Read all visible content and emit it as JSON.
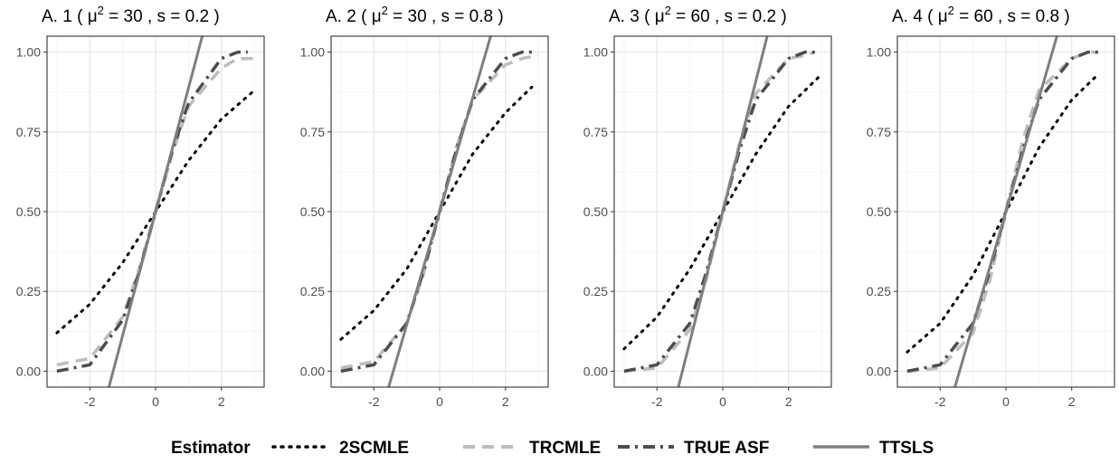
{
  "chart_data": {
    "type": "line",
    "x_ticks": [
      -2,
      0,
      2
    ],
    "y_ticks": [
      0,
      0.25,
      0.5,
      0.75,
      1
    ],
    "y_tick_labels": [
      "0.00",
      "0.25",
      "0.50",
      "0.75",
      "1.00"
    ],
    "x_tick_labels": [
      "-2",
      "0",
      "2"
    ],
    "xlim": [
      -3.3,
      3.3
    ],
    "ylim": [
      -0.05,
      1.05
    ],
    "grid": true,
    "legend": {
      "title": "Estimator",
      "placement": "bottom",
      "entries": [
        {
          "name": "2SCMLE",
          "color": "#000000",
          "style": "dotted"
        },
        {
          "name": "TRCMLE",
          "color": "#bdbdbd",
          "style": "dashed"
        },
        {
          "name": "TRUE ASF",
          "color": "#4d4d4d",
          "style": "dashdot"
        },
        {
          "name": "TTSLS",
          "color": "#7f7f7f",
          "style": "solid"
        }
      ]
    },
    "panels": [
      {
        "id": "A1",
        "title": {
          "prefix": "A. 1 ( ",
          "mu": "μ",
          "exp": "2",
          "rest": " = 30 , s = 0.2 )"
        },
        "series": [
          {
            "name": "2SCMLE",
            "x": [
              -3,
              -2,
              -1,
              0,
              1,
              2,
              3
            ],
            "y": [
              0.12,
              0.21,
              0.34,
              0.5,
              0.66,
              0.79,
              0.88
            ]
          },
          {
            "name": "TRCMLE",
            "x": [
              -3,
              -2,
              -1,
              -0.5,
              0,
              0.5,
              1,
              2,
              2.5,
              3
            ],
            "y": [
              0.02,
              0.04,
              0.17,
              0.32,
              0.5,
              0.68,
              0.83,
              0.95,
              0.98,
              0.98
            ]
          },
          {
            "name": "TRUE ASF",
            "x": [
              -3,
              -2,
              -1,
              -0.5,
              0,
              0.5,
              1,
              2,
              2.5,
              2.8
            ],
            "y": [
              0.0,
              0.02,
              0.16,
              0.31,
              0.5,
              0.69,
              0.84,
              0.98,
              1.0,
              1.0
            ]
          },
          {
            "name": "TTSLS",
            "x": [
              -1.42,
              1.42
            ],
            "y": [
              -0.05,
              1.05
            ]
          }
        ]
      },
      {
        "id": "A2",
        "title": {
          "prefix": "A. 2 ( ",
          "mu": "μ",
          "exp": "2",
          "rest": " = 30 , s = 0.8 )"
        },
        "series": [
          {
            "name": "2SCMLE",
            "x": [
              -3,
              -2,
              -1,
              0,
              1,
              2,
              2.8
            ],
            "y": [
              0.1,
              0.19,
              0.32,
              0.5,
              0.68,
              0.81,
              0.89
            ]
          },
          {
            "name": "TRCMLE",
            "x": [
              -3,
              -2,
              -1,
              -0.5,
              0,
              0.5,
              1,
              2,
              2.5,
              3
            ],
            "y": [
              0.01,
              0.03,
              0.15,
              0.3,
              0.5,
              0.7,
              0.85,
              0.96,
              0.98,
              0.99
            ]
          },
          {
            "name": "TRUE ASF",
            "x": [
              -3,
              -2,
              -1,
              -0.5,
              0,
              0.5,
              1,
              2,
              2.5,
              2.8
            ],
            "y": [
              0.0,
              0.02,
              0.15,
              0.31,
              0.5,
              0.69,
              0.85,
              0.98,
              1.0,
              1.0
            ]
          },
          {
            "name": "TTSLS",
            "x": [
              -1.55,
              1.55
            ],
            "y": [
              -0.05,
              1.05
            ]
          }
        ]
      },
      {
        "id": "A3",
        "title": {
          "prefix": "A. 3 ( ",
          "mu": "μ",
          "exp": "2",
          "rest": " = 60 , s = 0.2 )"
        },
        "series": [
          {
            "name": "2SCMLE",
            "x": [
              -3,
              -2,
              -1,
              0,
              1,
              2,
              3
            ],
            "y": [
              0.07,
              0.17,
              0.32,
              0.5,
              0.68,
              0.83,
              0.93
            ]
          },
          {
            "name": "TRCMLE",
            "x": [
              -3,
              -2,
              -1,
              -0.5,
              0,
              0.5,
              1,
              2,
              2.5,
              2.8
            ],
            "y": [
              0.0,
              0.01,
              0.13,
              0.29,
              0.5,
              0.71,
              0.87,
              0.98,
              0.99,
              1.0
            ]
          },
          {
            "name": "TRUE ASF",
            "x": [
              -3,
              -2,
              -1,
              -0.5,
              0,
              0.5,
              1,
              2,
              2.5,
              2.8
            ],
            "y": [
              0.0,
              0.02,
              0.15,
              0.31,
              0.5,
              0.69,
              0.85,
              0.98,
              1.0,
              1.0
            ]
          },
          {
            "name": "TTSLS",
            "x": [
              -1.35,
              1.35
            ],
            "y": [
              -0.05,
              1.05
            ]
          }
        ]
      },
      {
        "id": "A4",
        "title": {
          "prefix": "A. 4 ( ",
          "mu": "μ",
          "exp": "2",
          "rest": " = 60 , s = 0.8 )"
        },
        "series": [
          {
            "name": "2SCMLE",
            "x": [
              -3,
              -2,
              -1,
              0,
              1,
              2,
              2.8
            ],
            "y": [
              0.06,
              0.15,
              0.3,
              0.5,
              0.7,
              0.85,
              0.93
            ]
          },
          {
            "name": "TRCMLE",
            "x": [
              -3,
              -2,
              -1,
              -0.5,
              0,
              0.5,
              1,
              2,
              2.5,
              2.8
            ],
            "y": [
              0.0,
              0.01,
              0.12,
              0.28,
              0.5,
              0.72,
              0.88,
              0.98,
              1.0,
              1.0
            ]
          },
          {
            "name": "TRUE ASF",
            "x": [
              -3,
              -2,
              -1,
              -0.5,
              0,
              0.5,
              1,
              2,
              2.5,
              2.8
            ],
            "y": [
              0.0,
              0.02,
              0.15,
              0.31,
              0.5,
              0.69,
              0.85,
              0.98,
              1.0,
              1.0
            ]
          },
          {
            "name": "TTSLS",
            "x": [
              -1.55,
              1.55
            ],
            "y": [
              -0.05,
              1.05
            ]
          }
        ]
      }
    ]
  }
}
